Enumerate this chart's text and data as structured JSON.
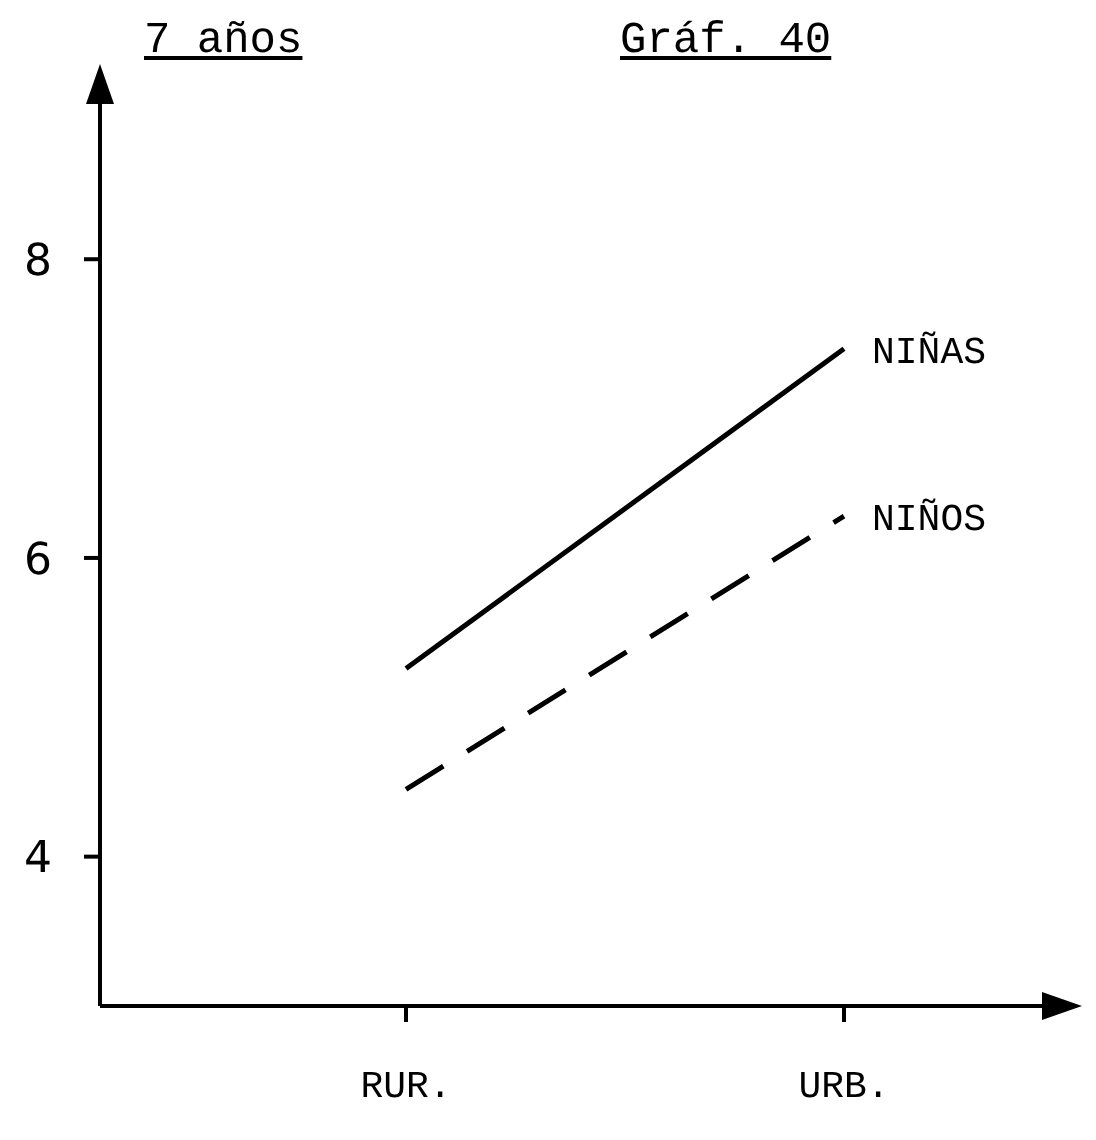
{
  "chart_data": {
    "type": "line",
    "title": "7 años",
    "subtitle": "Gráf. 40",
    "categories": [
      "RUR.",
      "URB."
    ],
    "series": [
      {
        "name": "NIÑAS",
        "color": "#000000",
        "line_style": "solid",
        "values": [
          5.26,
          7.4
        ]
      },
      {
        "name": "NIÑOS",
        "color": "#000000",
        "line_style": "dashed",
        "values": [
          4.45,
          6.28
        ]
      }
    ],
    "ylim": [
      3,
      9.2
    ],
    "yticks": [
      4,
      6,
      8
    ],
    "legend": false,
    "marker": "none"
  }
}
